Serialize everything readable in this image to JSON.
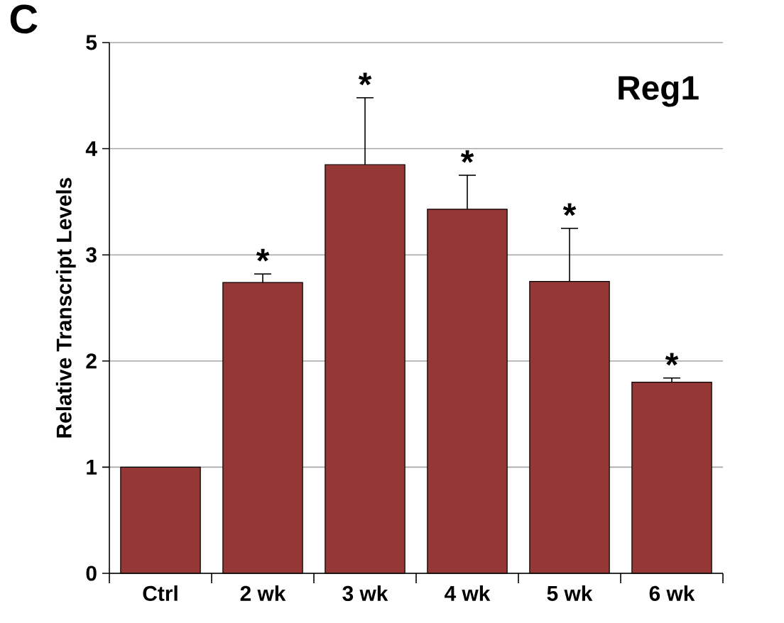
{
  "chart_data": {
    "type": "bar",
    "title": "Reg1",
    "ylabel": "Relative Transcript Levels",
    "categories": [
      "Ctrl",
      "2 wk",
      "3 wk",
      "4 wk",
      "5 wk",
      "6 wk"
    ],
    "values": [
      1.0,
      2.74,
      3.85,
      3.43,
      2.75,
      1.8
    ],
    "errors": [
      null,
      [
        2.74,
        2.82
      ],
      [
        3.85,
        4.48
      ],
      [
        3.43,
        3.75
      ],
      [
        2.75,
        3.25
      ],
      [
        1.8,
        1.84
      ]
    ],
    "color": "#953735",
    "ylim": [
      0,
      5
    ],
    "yticks": [
      0,
      1,
      2,
      3,
      4,
      5
    ],
    "grid": "y",
    "annotations": [
      "C",
      {
        "text": "*",
        "x": "2 wk",
        "y": 2.82
      },
      {
        "text": "*",
        "x": "3 wk",
        "y": 4.48
      },
      {
        "text": "*",
        "x": "4 wk",
        "y": 3.75
      },
      {
        "text": "*",
        "x": "5 wk",
        "y": 3.25
      },
      {
        "text": "*",
        "x": "6 wk",
        "y": 1.84
      }
    ]
  }
}
